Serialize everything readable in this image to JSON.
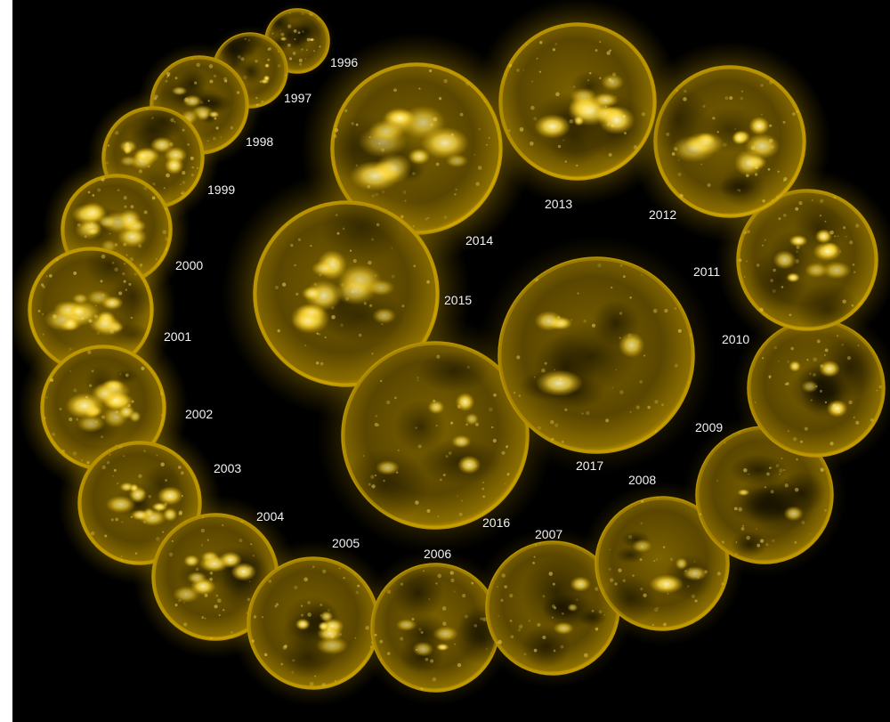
{
  "image": {
    "background_color": "#000000",
    "border_color": "#ffffff",
    "sun_colors": {
      "glow": "#caa100",
      "bright": "#ffe56b",
      "surface": "#6d5600",
      "dark": "#221a00",
      "limb": "#b69000"
    }
  },
  "suns": [
    {
      "year": "1996",
      "activity": 0.1,
      "dim": 0.75
    },
    {
      "year": "1997",
      "activity": 0.15,
      "dim": 0.7
    },
    {
      "year": "1998",
      "activity": 0.45,
      "dim": 0.55
    },
    {
      "year": "1999",
      "activity": 0.6,
      "dim": 0.35
    },
    {
      "year": "2000",
      "activity": 0.75,
      "dim": 0.25
    },
    {
      "year": "2001",
      "activity": 0.9,
      "dim": 0.15
    },
    {
      "year": "2002",
      "activity": 0.85,
      "dim": 0.15
    },
    {
      "year": "2003",
      "activity": 0.7,
      "dim": 0.25
    },
    {
      "year": "2004",
      "activity": 0.55,
      "dim": 0.35
    },
    {
      "year": "2005",
      "activity": 0.4,
      "dim": 0.4
    },
    {
      "year": "2006",
      "activity": 0.2,
      "dim": 0.6
    },
    {
      "year": "2007",
      "activity": 0.15,
      "dim": 0.55
    },
    {
      "year": "2008",
      "activity": 0.25,
      "dim": 0.45
    },
    {
      "year": "2009",
      "activity": 0.1,
      "dim": 0.7
    },
    {
      "year": "2010",
      "activity": 0.2,
      "dim": 0.55
    },
    {
      "year": "2011",
      "activity": 0.55,
      "dim": 0.35
    },
    {
      "year": "2012",
      "activity": 0.7,
      "dim": 0.3
    },
    {
      "year": "2013",
      "activity": 0.7,
      "dim": 0.3
    },
    {
      "year": "2014",
      "activity": 0.8,
      "dim": 0.2
    },
    {
      "year": "2015",
      "activity": 0.75,
      "dim": 0.2
    },
    {
      "year": "2016",
      "activity": 0.4,
      "dim": 0.4
    },
    {
      "year": "2017",
      "activity": 0.2,
      "dim": 0.55
    }
  ]
}
